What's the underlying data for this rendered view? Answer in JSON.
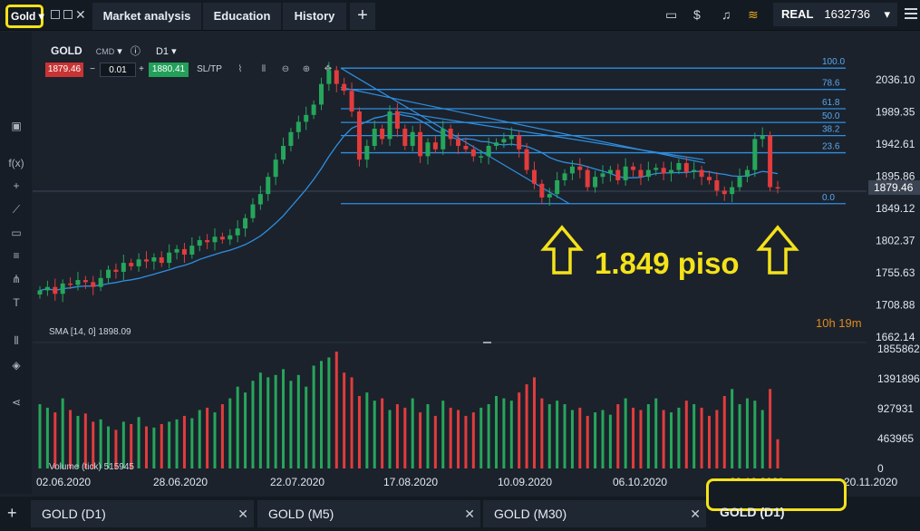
{
  "topbar": {
    "symbol": "Gold",
    "tabs": [
      "Market analysis",
      "Education",
      "History"
    ],
    "plus": "+",
    "account_type": "REAL",
    "account_number": "1632736"
  },
  "header": {
    "instrument": "GOLD",
    "cmd": "CMD",
    "timeframe": "D1",
    "bid": "1879.46",
    "lot": "0.01",
    "ask": "1880.41",
    "sltp": "SL/TP"
  },
  "indicators": {
    "sma_label": "SMA [14, 0] 1898.09",
    "volume_label": "Volume (tick) 515945",
    "timer": "10h 19m"
  },
  "annotation": {
    "text": "1.849 piso"
  },
  "colors": {
    "up": "#26a65b",
    "down": "#e23c3c",
    "line": "#2f8fe0",
    "highlight": "#f4e21a",
    "orange": "#e08a1e"
  },
  "bottom_tabs": [
    "GOLD (D1)",
    "GOLD (M5)",
    "GOLD (M30)",
    "GOLD (D1)"
  ],
  "chart_data": {
    "type": "candlestick",
    "price_ticks": [
      "2036.10",
      "1989.35",
      "1942.61",
      "1895.86",
      "1849.12",
      "1802.37",
      "1755.63",
      "1708.88",
      "1662.14"
    ],
    "current_price": "1879.46",
    "fib_levels": [
      {
        "label": "100.0",
        "value": 2053
      },
      {
        "label": "78.6",
        "value": 2022
      },
      {
        "label": "61.8",
        "value": 1994
      },
      {
        "label": "50.0",
        "value": 1974
      },
      {
        "label": "38.2",
        "value": 1955
      },
      {
        "label": "23.6",
        "value": 1930
      },
      {
        "label": "0.0",
        "value": 1856
      }
    ],
    "volume_ticks": [
      "1855862",
      "1391896",
      "927931",
      "463965",
      "0"
    ],
    "x_ticks": [
      "02.06.2020",
      "28.06.2020",
      "22.07.2020",
      "17.08.2020",
      "10.09.2020",
      "06.10.2020",
      "29.10.2020",
      "20.11.2020"
    ],
    "candles_close": [
      1730,
      1735,
      1725,
      1740,
      1738,
      1745,
      1742,
      1735,
      1748,
      1760,
      1757,
      1770,
      1765,
      1775,
      1772,
      1778,
      1770,
      1785,
      1790,
      1782,
      1795,
      1803,
      1800,
      1808,
      1804,
      1810,
      1820,
      1835,
      1855,
      1870,
      1895,
      1920,
      1940,
      1960,
      1975,
      1985,
      2000,
      2030,
      2050,
      2030,
      2020,
      1990,
      1920,
      1940,
      1965,
      1950,
      1990,
      1965,
      1940,
      1960,
      1925,
      1945,
      1935,
      1965,
      1950,
      1940,
      1935,
      1925,
      1925,
      1940,
      1945,
      1950,
      1955,
      1935,
      1905,
      1885,
      1865,
      1870,
      1890,
      1900,
      1910,
      1905,
      1880,
      1895,
      1900,
      1905,
      1890,
      1910,
      1905,
      1895,
      1905,
      1908,
      1900,
      1905,
      1915,
      1902,
      1905,
      1895,
      1890,
      1875,
      1870,
      1880,
      1895,
      1905,
      1950,
      1955,
      1880,
      1879
    ],
    "volumes_relative": [
      0.55,
      0.52,
      0.48,
      0.6,
      0.5,
      0.45,
      0.47,
      0.4,
      0.42,
      0.36,
      0.33,
      0.4,
      0.38,
      0.44,
      0.36,
      0.35,
      0.38,
      0.4,
      0.42,
      0.45,
      0.43,
      0.5,
      0.52,
      0.48,
      0.55,
      0.6,
      0.7,
      0.65,
      0.75,
      0.82,
      0.78,
      0.8,
      0.85,
      0.75,
      0.8,
      0.7,
      0.88,
      0.92,
      0.95,
      1.0,
      0.82,
      0.78,
      0.62,
      0.65,
      0.58,
      0.6,
      0.5,
      0.55,
      0.52,
      0.6,
      0.48,
      0.55,
      0.45,
      0.58,
      0.52,
      0.5,
      0.45,
      0.48,
      0.52,
      0.55,
      0.62,
      0.6,
      0.58,
      0.65,
      0.72,
      0.78,
      0.6,
      0.55,
      0.58,
      0.55,
      0.5,
      0.52,
      0.45,
      0.48,
      0.5,
      0.46,
      0.55,
      0.6,
      0.52,
      0.5,
      0.55,
      0.6,
      0.5,
      0.48,
      0.52,
      0.58,
      0.55,
      0.52,
      0.45,
      0.5,
      0.62,
      0.68,
      0.55,
      0.6,
      0.58,
      0.5,
      0.68,
      0.25
    ]
  }
}
